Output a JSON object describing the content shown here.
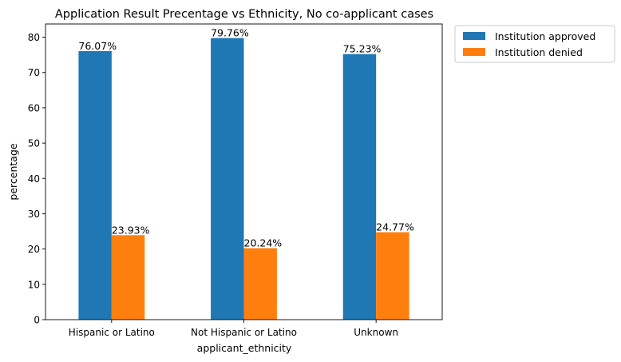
{
  "chart_data": {
    "type": "bar",
    "title": "Application Result Precentage vs Ethnicity, No co-applicant cases",
    "xlabel": "applicant_ethnicity",
    "ylabel": "percentage",
    "categories": [
      "Hispanic or Latino",
      "Not Hispanic or Latino",
      "Unknown"
    ],
    "series": [
      {
        "name": "Institution approved",
        "color": "#1f77b4",
        "values": [
          76.07,
          79.76,
          75.23
        ],
        "labels": [
          "76.07%",
          "79.76%",
          "75.23%"
        ]
      },
      {
        "name": "Institution denied",
        "color": "#ff7f0e",
        "values": [
          23.93,
          20.24,
          24.77
        ],
        "labels": [
          "23.93%",
          "20.24%",
          "24.77%"
        ]
      }
    ],
    "ylim": [
      0,
      83.75
    ],
    "yticks": [
      0,
      10,
      20,
      30,
      40,
      50,
      60,
      70,
      80
    ],
    "yticklabels": [
      "0",
      "10",
      "20",
      "30",
      "40",
      "50",
      "60",
      "70",
      "80"
    ],
    "grid": false,
    "legend_position": "outside top-right"
  }
}
